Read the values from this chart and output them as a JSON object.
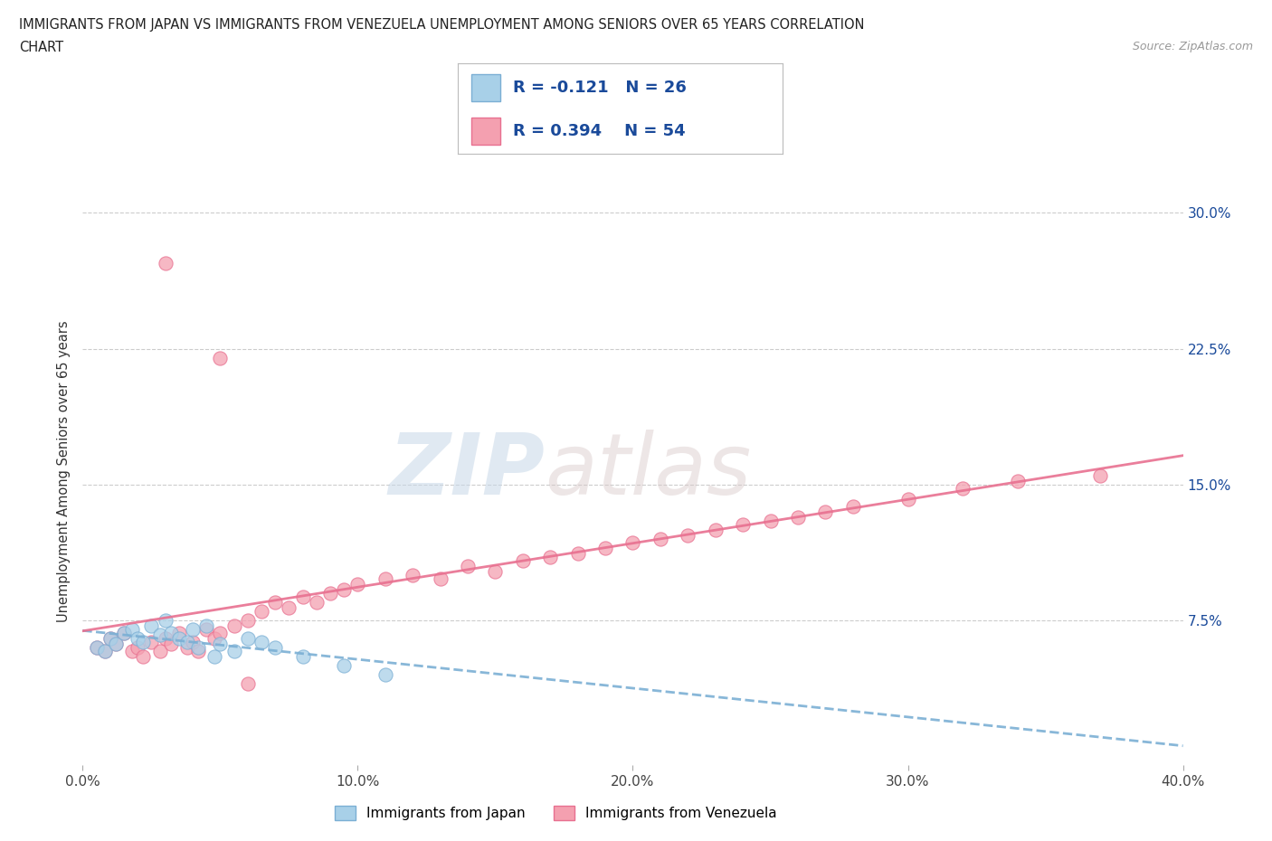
{
  "title_line1": "IMMIGRANTS FROM JAPAN VS IMMIGRANTS FROM VENEZUELA UNEMPLOYMENT AMONG SENIORS OVER 65 YEARS CORRELATION",
  "title_line2": "CHART",
  "source": "Source: ZipAtlas.com",
  "ylabel": "Unemployment Among Seniors over 65 years",
  "y_tick_vals": [
    0.075,
    0.15,
    0.225,
    0.3
  ],
  "y_tick_labels": [
    "7.5%",
    "15.0%",
    "22.5%",
    "30.0%"
  ],
  "x_tick_vals": [
    0.0,
    0.1,
    0.2,
    0.3,
    0.4
  ],
  "x_tick_labels": [
    "0.0%",
    "10.0%",
    "20.0%",
    "30.0%",
    "40.0%"
  ],
  "xlim": [
    0.0,
    0.4
  ],
  "ylim": [
    -0.005,
    0.32
  ],
  "japan_color": "#A8D0E8",
  "japan_edge_color": "#7BAFD4",
  "venezuela_color": "#F4A0B0",
  "venezuela_edge_color": "#E87090",
  "japan_line_color": "#7BAFD4",
  "venezuela_line_color": "#E87090",
  "japan_R": -0.121,
  "japan_N": 26,
  "venezuela_R": 0.394,
  "venezuela_N": 54,
  "watermark_top": "ZIP",
  "watermark_bot": "atlas",
  "legend_label_japan": "Immigrants from Japan",
  "legend_label_venezuela": "Immigrants from Venezuela",
  "japan_scatter_x": [
    0.005,
    0.008,
    0.01,
    0.012,
    0.015,
    0.018,
    0.02,
    0.022,
    0.025,
    0.028,
    0.03,
    0.032,
    0.035,
    0.038,
    0.04,
    0.042,
    0.045,
    0.048,
    0.05,
    0.055,
    0.06,
    0.065,
    0.07,
    0.08,
    0.095,
    0.11
  ],
  "japan_scatter_y": [
    0.06,
    0.058,
    0.065,
    0.062,
    0.068,
    0.07,
    0.065,
    0.063,
    0.072,
    0.067,
    0.075,
    0.068,
    0.065,
    0.063,
    0.07,
    0.06,
    0.072,
    0.055,
    0.062,
    0.058,
    0.065,
    0.063,
    0.06,
    0.055,
    0.05,
    0.045
  ],
  "venezuela_scatter_x": [
    0.005,
    0.008,
    0.01,
    0.012,
    0.015,
    0.018,
    0.02,
    0.022,
    0.025,
    0.028,
    0.03,
    0.032,
    0.035,
    0.038,
    0.04,
    0.042,
    0.045,
    0.048,
    0.05,
    0.055,
    0.06,
    0.065,
    0.07,
    0.075,
    0.08,
    0.085,
    0.09,
    0.095,
    0.1,
    0.11,
    0.12,
    0.13,
    0.14,
    0.15,
    0.16,
    0.17,
    0.18,
    0.19,
    0.2,
    0.21,
    0.22,
    0.23,
    0.24,
    0.25,
    0.26,
    0.27,
    0.28,
    0.3,
    0.32,
    0.34,
    0.03,
    0.05,
    0.06,
    0.37
  ],
  "venezuela_scatter_y": [
    0.06,
    0.058,
    0.065,
    0.062,
    0.068,
    0.058,
    0.06,
    0.055,
    0.063,
    0.058,
    0.065,
    0.062,
    0.068,
    0.06,
    0.063,
    0.058,
    0.07,
    0.065,
    0.068,
    0.072,
    0.075,
    0.08,
    0.085,
    0.082,
    0.088,
    0.085,
    0.09,
    0.092,
    0.095,
    0.098,
    0.1,
    0.098,
    0.105,
    0.102,
    0.108,
    0.11,
    0.112,
    0.115,
    0.118,
    0.12,
    0.122,
    0.125,
    0.128,
    0.13,
    0.132,
    0.135,
    0.138,
    0.142,
    0.148,
    0.152,
    0.272,
    0.22,
    0.04,
    0.155
  ],
  "background_color": "#FFFFFF",
  "grid_color": "#CCCCCC",
  "title_color": "#222222",
  "stat_color": "#1A4A9A",
  "right_tick_color": "#1A4A9A"
}
